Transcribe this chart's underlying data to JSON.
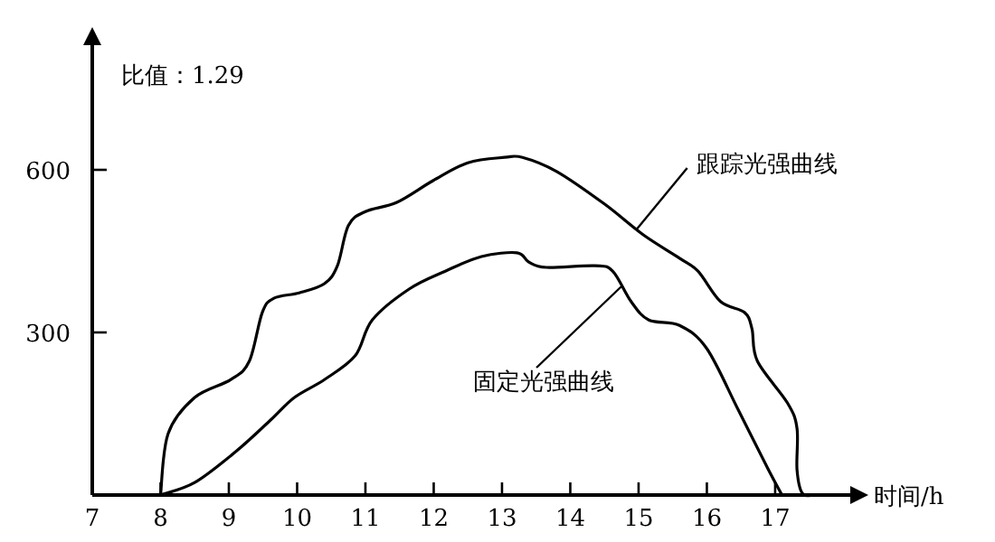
{
  "chart_data": {
    "type": "line",
    "xlabel": "时间/h",
    "xlim": [
      7,
      18.1
    ],
    "ylim": [
      0,
      830
    ],
    "xticks": [
      7,
      8,
      9,
      10,
      11,
      12,
      13,
      14,
      15,
      16,
      17
    ],
    "yticks": [
      300,
      600
    ],
    "grid": false,
    "marker": "none",
    "line_style": "solid",
    "series": [
      {
        "color": "#000000",
        "x": [
          8,
          8.11,
          8.5,
          9.03,
          9.3,
          9.49,
          9.66,
          10.03,
          10.4,
          10.59,
          10.75,
          11.0,
          11.46,
          11.99,
          12.5,
          13.04,
          13.3,
          13.8,
          14.5,
          15.07,
          15.6,
          15.87,
          16.2,
          16.55,
          16.66,
          16.74,
          17.18,
          17.32,
          17.32,
          17.4,
          17.6
        ],
        "values": [
          0,
          113,
          180,
          213,
          247,
          337,
          363,
          373,
          390,
          423,
          497,
          523,
          540,
          580,
          613,
          623,
          623,
          597,
          537,
          480,
          437,
          413,
          357,
          337,
          307,
          247,
          170,
          123,
          47,
          3,
          0
        ]
      },
      {
        "color": "#000000",
        "x": [
          8,
          8.5,
          9.1,
          9.6,
          9.96,
          10.4,
          10.85,
          11.1,
          11.64,
          12.17,
          12.7,
          13.22,
          13.39,
          13.65,
          14.36,
          14.62,
          14.89,
          15.15,
          15.6,
          16.0,
          16.46,
          16.9,
          17.1
        ],
        "values": [
          0,
          23,
          80,
          137,
          180,
          213,
          257,
          323,
          380,
          413,
          440,
          447,
          430,
          420,
          423,
          413,
          357,
          323,
          313,
          270,
          157,
          47,
          0
        ]
      }
    ],
    "annotations": [
      "比值：1.29",
      {
        "text": "跟踪光强曲线",
        "x": 14.97,
        "y": 490
      },
      {
        "text": "固定光强曲线",
        "x": 14.75,
        "y": 385
      }
    ]
  }
}
